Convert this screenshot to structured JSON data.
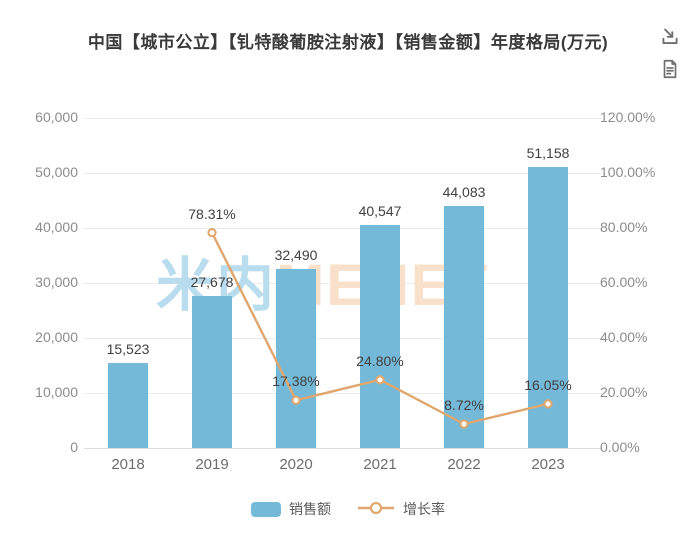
{
  "title": "中国【城市公立】【钆特酸葡胺注射液】【销售金额】年度格局(万元)",
  "header_icons": {
    "download": "download-icon",
    "report": "report-icon"
  },
  "watermark": {
    "part1": "米内",
    "part2": "MENET",
    "color1": "#b9dcee",
    "color2": "#f8e0cb"
  },
  "chart_data": {
    "type": "combo",
    "categories": [
      "2018",
      "2019",
      "2020",
      "2021",
      "2022",
      "2023"
    ],
    "series": [
      {
        "name": "销售额",
        "type": "bar",
        "axis": "left",
        "color": "#74b9d8",
        "values": [
          15523,
          27678,
          32490,
          40547,
          44083,
          51158
        ],
        "labels": [
          "15,523",
          "27,678",
          "32,490",
          "40,547",
          "44,083",
          "51,158"
        ]
      },
      {
        "name": "增长率",
        "type": "line",
        "axis": "right",
        "color": "#dfa76e",
        "values": [
          null,
          78.31,
          17.38,
          24.8,
          8.72,
          16.05
        ],
        "labels": [
          "",
          "78.31%",
          "17.38%",
          "24.80%",
          "8.72%",
          "16.05%"
        ]
      }
    ],
    "left_axis": {
      "min": 0,
      "max": 60000,
      "step": 10000,
      "ticks_top_to_bottom": [
        "60,000",
        "50,000",
        "40,000",
        "30,000",
        "20,000",
        "10,000",
        "0"
      ]
    },
    "right_axis": {
      "min": 0,
      "max": 120,
      "step": 20,
      "ticks_top_to_bottom": [
        "120.00%",
        "100.00%",
        "80.00%",
        "60.00%",
        "40.00%",
        "20.00%",
        "0.00%"
      ]
    },
    "grid": "on",
    "legend_position": "bottom",
    "colors": {
      "bar": "#74b9d8",
      "line": "#dfa76e",
      "gridline": "#ebebeb",
      "axis_label": "#8c8c8c",
      "value_label": "#404040"
    }
  }
}
